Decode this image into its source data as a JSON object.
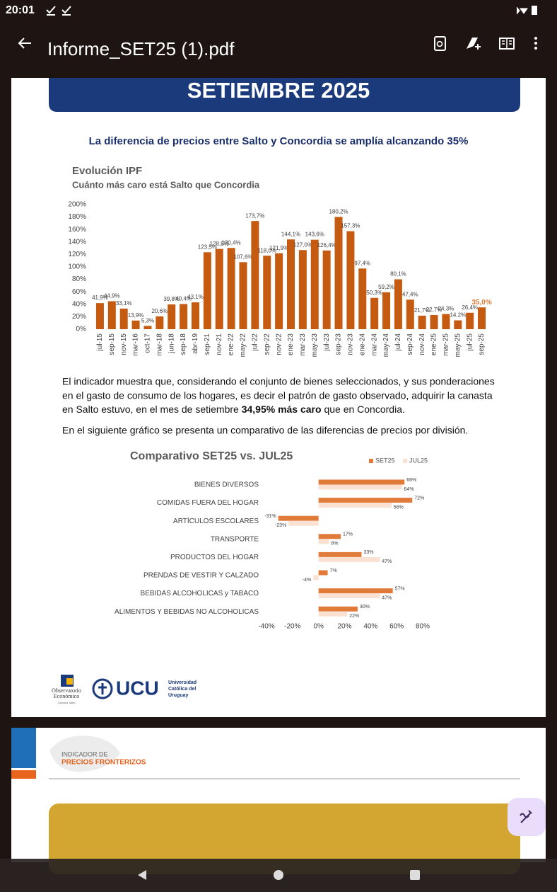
{
  "status_bar": {
    "time": "20:01"
  },
  "app_bar": {
    "title": "Informe_SET25 (1).pdf"
  },
  "page1": {
    "banner": "SETIEMBRE 2025",
    "headline": "La diferencia de precios entre Salto y Concordia se amplía alcanzando 35%",
    "body": {
      "lines": [
        "El indicador muestra que, considerando el conjunto de bienes seleccionados, y sus ponderaciones",
        "en el gasto de consumo de los hogares, es decir el patrón de gasto observado, adquirir la canasta"
      ],
      "last_line_start": "en Salto estuvo, en el mes de setiembre ",
      "emphasis": "34,95% más caro",
      "last_line_end": " que en Concordia."
    },
    "intro": "En el siguiente gráfico se presenta un comparativo de las diferencias de precios por división.",
    "logos": {
      "observatorio_1": "Observatorio",
      "observatorio_2": "Económico",
      "campus": "Campus Salto",
      "ucu": "UCU",
      "ucu_1": "Universidad",
      "ucu_2": "Católica del",
      "ucu_3": "Uruguay"
    }
  },
  "page2": {
    "kicker": "INDICADOR DE",
    "title": "PRECIOS FRONTERIZOS"
  },
  "chart_data": [
    {
      "type": "bar",
      "title": "Evolución IPF",
      "subtitle": "Cuánto más caro está Salto que Concordia",
      "categories": [
        "jul-15",
        "sep-15",
        "nov-15",
        "mar-16",
        "oct-17",
        "mar-18",
        "jun-18",
        "sep-18",
        "abr-19",
        "sep-21",
        "nov-21",
        "ene-22",
        "may-22",
        "jul-22",
        "sep-22",
        "nov-22",
        "ene-23",
        "mar-23",
        "may-23",
        "jul-23",
        "sep-23",
        "nov-23",
        "ene-24",
        "mar-24",
        "may-24",
        "jul-24",
        "sep-24",
        "nov-24",
        "ene-25",
        "mar-25",
        "may-25",
        "jul-25",
        "sep-25"
      ],
      "values": [
        41.9,
        44.9,
        33.1,
        13.9,
        5.3,
        20.6,
        39.8,
        40.4,
        43.1,
        123.5,
        128.8,
        130.4,
        107.6,
        173.7,
        118.0,
        121.9,
        144.1,
        127.0,
        143.6,
        126.4,
        180.2,
        157.3,
        97.4,
        50.3,
        59.2,
        80.1,
        47.4,
        21.7,
        22.7,
        24.3,
        14.2,
        26.4,
        35.0
      ],
      "value_labels": [
        "41,9%",
        "44,9%",
        "33,1%",
        "13,9%",
        "5,3%",
        "20,6%",
        "39,8%",
        "40,4%",
        "43,1%",
        "123,5%",
        "128,8%",
        "130,4%",
        "107,6%",
        "173,7%",
        "118,0%",
        "121,9%",
        "144,1%",
        "127,0%",
        "143,6%",
        "126,4%",
        "180,2%",
        "157,3%",
        "97,4%",
        "50,3%",
        "59,2%",
        "80,1%",
        "47,4%",
        "21,7%",
        "22,7%",
        "24,3%",
        "14,2%",
        "26,4%",
        "35,0%"
      ],
      "color": "#c55a11",
      "grid": false,
      "ylim": [
        0,
        200
      ],
      "yticks": [
        {
          "value": 0,
          "label": "0%"
        },
        {
          "value": 20,
          "label": "20%"
        },
        {
          "value": 40,
          "label": "40%"
        },
        {
          "value": 60,
          "label": "60%"
        },
        {
          "value": 80,
          "label": "80%"
        },
        {
          "value": 100,
          "label": "100%"
        },
        {
          "value": 120,
          "label": "120%"
        },
        {
          "value": 140,
          "label": "140%"
        },
        {
          "value": 160,
          "label": "160%"
        },
        {
          "value": 180,
          "label": "180%"
        },
        {
          "value": 200,
          "label": "200%"
        }
      ]
    },
    {
      "type": "hbar",
      "title": "Comparativo SET25 vs. JUL25",
      "categories": [
        "BIENES DIVERSOS",
        "COMIDAS FUERA DEL HOGAR",
        "ARTÍCULOS ESCOLARES",
        "TRANSPORTE",
        "PRODUCTOS DEL HOGAR",
        "PRENDAS DE VESTIR Y CALZADO",
        "BEBIDAS ALCOHOLICAS y TABACO",
        "ALIMENTOS Y BEBIDAS NO ALCOHOLICAS"
      ],
      "series": [
        {
          "name": "SET25",
          "color": "#e07b39",
          "values": [
            66,
            72,
            -31,
            17,
            33,
            7,
            57,
            30
          ],
          "value_labels": [
            "66%",
            "72%",
            "-31%",
            "17%",
            "33%",
            "7%",
            "57%",
            "30%"
          ]
        },
        {
          "name": "JUL25",
          "color": "#fbe1d1",
          "values": [
            64,
            56,
            -23,
            8,
            47,
            -4,
            47,
            22
          ],
          "value_labels": [
            "64%",
            "56%",
            "-23%",
            "8%",
            "47%",
            "-4%",
            "47%",
            "22%"
          ]
        }
      ],
      "xlim": [
        -40,
        80
      ],
      "xticks": [
        {
          "value": -40,
          "label": "-40%"
        },
        {
          "value": -20,
          "label": "-20%"
        },
        {
          "value": 0,
          "label": "0%"
        },
        {
          "value": 20,
          "label": "20%"
        },
        {
          "value": 40,
          "label": "40%"
        },
        {
          "value": 60,
          "label": "60%"
        },
        {
          "value": 80,
          "label": "80%"
        }
      ],
      "legend": "top-right"
    }
  ]
}
